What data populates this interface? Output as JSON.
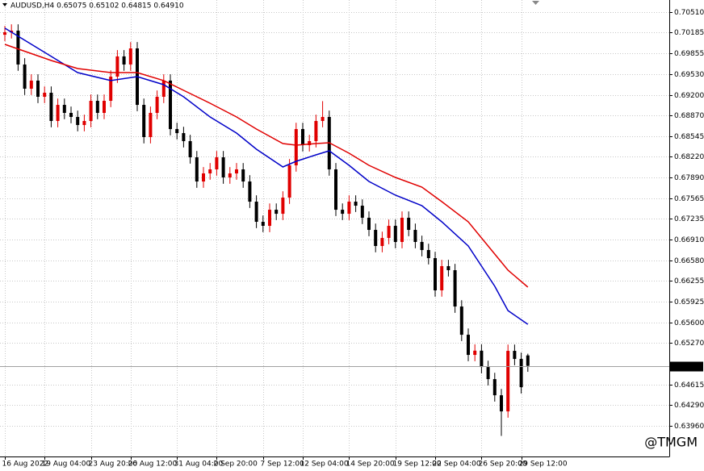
{
  "chart_data": {
    "type": "candlestick",
    "title": "AUDUSD,H4  0.65075 0.65102 0.64815 0.64910",
    "watermark": "@TMGM",
    "up_color": "#e00000",
    "down_color": "#000000",
    "grid": true,
    "categories": [
      "16 Aug 2022",
      null,
      null,
      null,
      null,
      null,
      "19 Aug 04:00",
      null,
      null,
      null,
      null,
      null,
      null,
      "23 Aug 20:00",
      null,
      null,
      null,
      null,
      null,
      "26 Aug 12:00",
      null,
      null,
      null,
      null,
      null,
      null,
      "31 Aug 04:00",
      null,
      null,
      null,
      null,
      null,
      "2 Sep 20:00",
      null,
      null,
      null,
      null,
      null,
      null,
      "7 Sep 12:00",
      null,
      null,
      null,
      null,
      null,
      "12 Sep 04:00",
      null,
      null,
      null,
      null,
      null,
      null,
      "14 Sep 20:00",
      null,
      null,
      null,
      null,
      null,
      null,
      "19 Sep 12:00",
      null,
      null,
      null,
      null,
      null,
      "22 Sep 04:00",
      null,
      null,
      null,
      null,
      null,
      null,
      "26 Sep 20:00",
      null,
      null,
      null,
      null,
      null,
      "29 Sep 12:00",
      null
    ],
    "open": [
      0.7015,
      0.70191,
      0.70216,
      0.6968,
      0.69297,
      0.69425,
      0.69169,
      0.69233,
      0.68786,
      0.69041,
      0.68914,
      0.6885,
      0.68722,
      0.68786,
      0.69105,
      0.68914,
      0.69105,
      0.69488,
      0.69808,
      0.6968,
      0.69935,
      0.69041,
      0.68531,
      0.68914,
      0.69169,
      0.69425,
      0.68658,
      0.68594,
      0.68467,
      0.68211,
      0.67828,
      0.67956,
      0.6802,
      0.68211,
      0.67892,
      0.67956,
      0.6802,
      0.67828,
      0.67509,
      0.6719,
      0.67126,
      0.67381,
      0.67317,
      0.67573,
      0.68084,
      0.68658,
      0.68403,
      0.68467,
      0.68786,
      0.6885,
      0.6802,
      0.67381,
      0.67317,
      0.67509,
      0.67445,
      0.67254,
      0.67062,
      0.66807,
      0.66934,
      0.67126,
      0.66871,
      0.67254,
      0.67062,
      0.66871,
      0.66743,
      0.66615,
      0.66105,
      0.66488,
      0.66424,
      0.65849,
      0.65402,
      0.65083,
      0.6515,
      0.64891,
      0.647,
      0.64444,
      0.64189,
      0.65147,
      0.65019,
      0.65075
    ],
    "high": [
      0.70291,
      0.70316,
      0.70316,
      0.6978,
      0.69525,
      0.69525,
      0.69333,
      0.69333,
      0.69141,
      0.69141,
      0.69014,
      0.6895,
      0.68886,
      0.69205,
      0.69205,
      0.69205,
      0.69588,
      0.69908,
      0.69908,
      0.70035,
      0.70035,
      0.69141,
      0.69014,
      0.69269,
      0.69525,
      0.69525,
      0.68758,
      0.68694,
      0.68567,
      0.68311,
      0.68056,
      0.6812,
      0.68311,
      0.68311,
      0.68056,
      0.6812,
      0.6812,
      0.67928,
      0.67609,
      0.6729,
      0.67481,
      0.67481,
      0.67673,
      0.68184,
      0.68758,
      0.68758,
      0.68567,
      0.68886,
      0.691,
      0.6895,
      0.6812,
      0.67481,
      0.67609,
      0.67609,
      0.67545,
      0.67354,
      0.67162,
      0.67034,
      0.67226,
      0.67226,
      0.67354,
      0.67354,
      0.67162,
      0.66971,
      0.66843,
      0.66715,
      0.66588,
      0.66588,
      0.66524,
      0.65949,
      0.65502,
      0.6525,
      0.6525,
      0.64991,
      0.648,
      0.64544,
      0.65247,
      0.65247,
      0.65119,
      0.65102
    ],
    "low": [
      0.7005,
      0.70091,
      0.6958,
      0.69197,
      0.69197,
      0.69069,
      0.69069,
      0.68686,
      0.68686,
      0.68814,
      0.6875,
      0.68622,
      0.68622,
      0.68686,
      0.68814,
      0.68814,
      0.69005,
      0.69388,
      0.6958,
      0.6958,
      0.68941,
      0.68431,
      0.68431,
      0.68814,
      0.69069,
      0.68558,
      0.68494,
      0.68367,
      0.68111,
      0.67728,
      0.67728,
      0.67856,
      0.6792,
      0.67792,
      0.67792,
      0.67856,
      0.67728,
      0.67409,
      0.6709,
      0.67026,
      0.67026,
      0.67217,
      0.67217,
      0.67473,
      0.67984,
      0.68303,
      0.68303,
      0.68367,
      0.68686,
      0.6792,
      0.67281,
      0.67217,
      0.67217,
      0.67345,
      0.67154,
      0.66962,
      0.66707,
      0.66707,
      0.66834,
      0.66771,
      0.66771,
      0.66962,
      0.66771,
      0.66643,
      0.66515,
      0.66005,
      0.66005,
      0.66324,
      0.65749,
      0.65302,
      0.64983,
      0.64983,
      0.64791,
      0.646,
      0.64344,
      0.638,
      0.64089,
      0.64919,
      0.64472,
      0.64815
    ],
    "close": [
      0.70191,
      0.70216,
      0.6968,
      0.69297,
      0.69425,
      0.69169,
      0.69233,
      0.68786,
      0.69041,
      0.68914,
      0.6885,
      0.68722,
      0.68786,
      0.69105,
      0.68914,
      0.69105,
      0.69488,
      0.69808,
      0.6968,
      0.69935,
      0.69041,
      0.68531,
      0.68914,
      0.69169,
      0.69425,
      0.68658,
      0.68594,
      0.68467,
      0.68211,
      0.67828,
      0.67956,
      0.6802,
      0.68211,
      0.67892,
      0.67956,
      0.6802,
      0.67828,
      0.67509,
      0.6719,
      0.67126,
      0.67381,
      0.67317,
      0.67573,
      0.68084,
      0.68658,
      0.68403,
      0.68467,
      0.68786,
      0.6885,
      0.6802,
      0.67381,
      0.67317,
      0.67509,
      0.67445,
      0.67254,
      0.67062,
      0.66807,
      0.66934,
      0.67126,
      0.66871,
      0.67254,
      0.67062,
      0.66871,
      0.66743,
      0.66615,
      0.66105,
      0.66488,
      0.66424,
      0.65849,
      0.65402,
      0.65083,
      0.6515,
      0.64891,
      0.647,
      0.64444,
      0.64189,
      0.65147,
      0.65019,
      0.64572,
      0.6491
    ],
    "series": [
      {
        "color": "#0000c8",
        "x": [
          0,
          7,
          11,
          16,
          20,
          24,
          27,
          31,
          35,
          38,
          42,
          44,
          47,
          49,
          52,
          55,
          59,
          63,
          66,
          70,
          74,
          76,
          79
        ],
        "values": [
          0.70255,
          0.69808,
          0.69552,
          0.69425,
          0.69488,
          0.69361,
          0.69169,
          0.6885,
          0.68594,
          0.68339,
          0.68058,
          0.68148,
          0.6825,
          0.68314,
          0.68084,
          0.67828,
          0.67611,
          0.67445,
          0.6719,
          0.66807,
          0.6617,
          0.65785,
          0.65568
        ]
      },
      {
        "color": "#e00000",
        "x": [
          0,
          7,
          11,
          16,
          20,
          24,
          27,
          31,
          35,
          38,
          42,
          44,
          47,
          49,
          52,
          55,
          59,
          63,
          66,
          70,
          74,
          76,
          79
        ],
        "values": [
          0.69999,
          0.69744,
          0.69616,
          0.69552,
          0.69552,
          0.69425,
          0.69271,
          0.69067,
          0.6885,
          0.68658,
          0.68429,
          0.68403,
          0.68429,
          0.68441,
          0.68275,
          0.68084,
          0.67892,
          0.67739,
          0.67509,
          0.6719,
          0.66679,
          0.66424,
          0.66156
        ]
      }
    ],
    "ylim": [
      0.63475,
      0.70701
    ],
    "yticks": [
      {
        "value": 0.7051,
        "label": "0.70510"
      },
      {
        "value": 0.70185,
        "label": "0.70185"
      },
      {
        "value": 0.69855,
        "label": "0.69855"
      },
      {
        "value": 0.6953,
        "label": "0.69530"
      },
      {
        "value": 0.692,
        "label": "0.69200"
      },
      {
        "value": 0.6887,
        "label": "0.68870"
      },
      {
        "value": 0.68545,
        "label": "0.68545"
      },
      {
        "value": 0.6822,
        "label": "0.68220"
      },
      {
        "value": 0.6789,
        "label": "0.67890"
      },
      {
        "value": 0.67565,
        "label": "0.67565"
      },
      {
        "value": 0.67235,
        "label": "0.67235"
      },
      {
        "value": 0.6691,
        "label": "0.66910"
      },
      {
        "value": 0.6658,
        "label": "0.66580"
      },
      {
        "value": 0.66255,
        "label": "0.66255"
      },
      {
        "value": 0.65925,
        "label": "0.65925"
      },
      {
        "value": 0.656,
        "label": "0.65600"
      },
      {
        "value": 0.6527,
        "label": "0.65270"
      },
      {
        "value": 0.64615,
        "label": "0.64615"
      },
      {
        "value": 0.6429,
        "label": "0.64290"
      },
      {
        "value": 0.6396,
        "label": "0.63960"
      }
    ],
    "price_line": {
      "value": 0.6491,
      "label": "0.64910"
    }
  }
}
